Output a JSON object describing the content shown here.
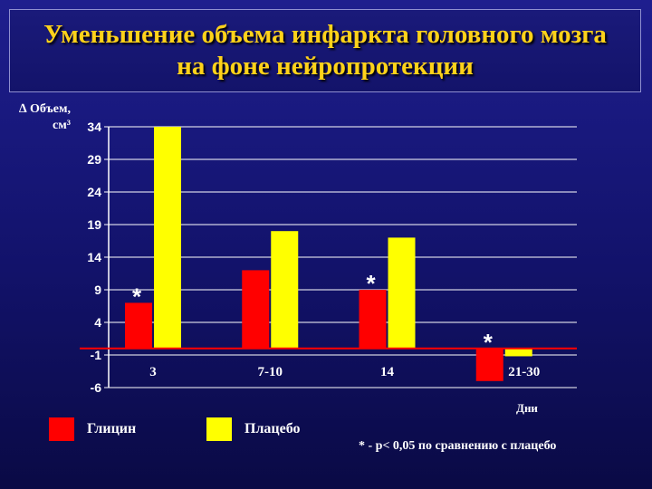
{
  "title": "Уменьшение объема инфаркта головного мозга на фоне нейропротекции",
  "colors": {
    "glycine": "#ff0000",
    "placebo": "#ffff00",
    "axis": "#ffffff",
    "grid": "#ffffff",
    "zero_line": "#ff0000"
  },
  "chart_data": {
    "type": "bar",
    "ylabel": "∆ Объем, см³",
    "xlabel": "Дни",
    "categories": [
      "3",
      "7-10",
      "14",
      "21-30"
    ],
    "yticks": [
      34,
      29,
      24,
      19,
      14,
      9,
      4,
      -1,
      -6
    ],
    "ylim": [
      -6,
      34
    ],
    "grid": true,
    "legend_position": "bottom-left",
    "series": [
      {
        "name": "Глицин",
        "color": "#ff0000",
        "values": [
          7,
          12,
          9,
          -5
        ],
        "significant": [
          true,
          false,
          true,
          true
        ]
      },
      {
        "name": "Плацебо",
        "color": "#ffff00",
        "values": [
          34,
          18,
          17,
          -1.2
        ]
      }
    ],
    "significance_marker": "*",
    "footnote": "* - р< 0,05 по сравнению с плацебо"
  }
}
